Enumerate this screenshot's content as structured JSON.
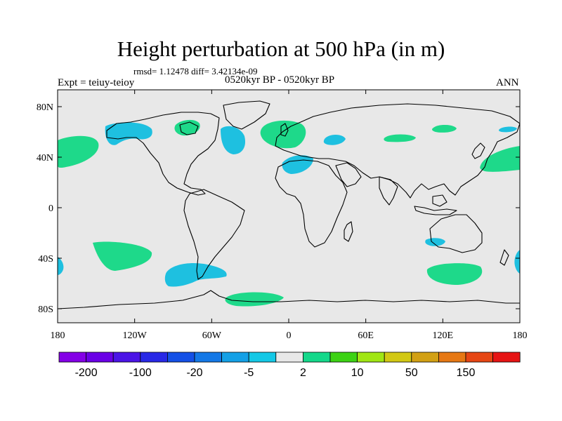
{
  "header": {
    "title": "Height perturbation at 500 hPa (in m)",
    "stats": "rmsd= 1.12478 diff= 3.42134e-09",
    "period": "0520kyr BP - 0520kyr BP",
    "experiment": "Expt = teiuy-teioy",
    "season": "ANN"
  },
  "map": {
    "projection": "cylindrical-equidistant",
    "background_color": "#e8e8e8",
    "lon_ticks": [
      {
        "lon": -180,
        "label": "180"
      },
      {
        "lon": -120,
        "label": "120W"
      },
      {
        "lon": -60,
        "label": "60W"
      },
      {
        "lon": 0,
        "label": "0"
      },
      {
        "lon": 60,
        "label": "60E"
      },
      {
        "lon": 120,
        "label": "120E"
      },
      {
        "lon": 180,
        "label": "180"
      }
    ],
    "lat_ticks": [
      {
        "lat": 80,
        "label": "80N"
      },
      {
        "lat": 40,
        "label": "40N"
      },
      {
        "lat": 0,
        "label": "0"
      },
      {
        "lat": -40,
        "label": "40S"
      },
      {
        "lat": -80,
        "label": "80S"
      }
    ],
    "anomaly_colors": {
      "positive": "#1ed98a",
      "negative": "#1ec0e0"
    }
  },
  "colorbar": {
    "colors": [
      "#8400e6",
      "#6a00e6",
      "#4b14e6",
      "#2828e6",
      "#1450e6",
      "#1478e6",
      "#14a0e6",
      "#14c8e6",
      "#e8e8e8",
      "#14d88a",
      "#3cd214",
      "#a0e614",
      "#d2c814",
      "#d2a014",
      "#e67814",
      "#e64614",
      "#e61414"
    ],
    "labels": [
      {
        "index": 1,
        "text": "-200"
      },
      {
        "index": 3,
        "text": "-100"
      },
      {
        "index": 5,
        "text": "-20"
      },
      {
        "index": 7,
        "text": "-5"
      },
      {
        "index": 9,
        "text": "2"
      },
      {
        "index": 11,
        "text": "10"
      },
      {
        "index": 13,
        "text": "50"
      },
      {
        "index": 15,
        "text": "150"
      }
    ]
  }
}
